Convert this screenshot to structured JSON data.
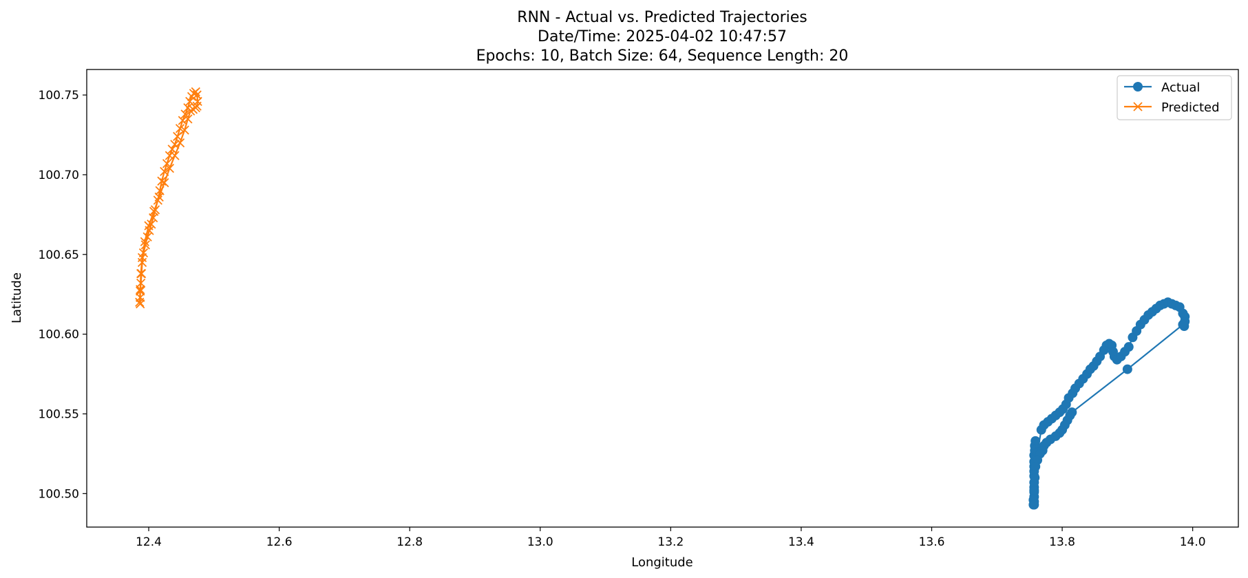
{
  "chart_data": {
    "type": "line",
    "title": [
      "RNN - Actual vs. Predicted Trajectories",
      "Date/Time: 2025-04-02 10:47:57",
      "Epochs: 10, Batch Size: 64, Sequence Length: 20"
    ],
    "xlabel": "Longitude",
    "ylabel": "Latitude",
    "xlim": [
      12.305,
      14.07
    ],
    "ylim": [
      100.479,
      100.766
    ],
    "xticks": [
      12.4,
      12.6,
      12.8,
      13.0,
      13.2,
      13.4,
      13.6,
      13.8,
      14.0
    ],
    "xtick_labels": [
      "12.4",
      "12.6",
      "12.8",
      "13.0",
      "13.2",
      "13.4",
      "13.6",
      "13.8",
      "14.0"
    ],
    "yticks": [
      100.5,
      100.55,
      100.6,
      100.65,
      100.7,
      100.75
    ],
    "ytick_labels": [
      "100.50",
      "100.55",
      "100.60",
      "100.65",
      "100.70",
      "100.75"
    ],
    "grid": false,
    "legend_position": "top-right",
    "series": [
      {
        "name": "Actual",
        "color": "#1f77b4",
        "marker": "circle",
        "x": [
          13.757,
          13.757,
          13.757,
          13.757,
          13.757,
          13.757,
          13.757,
          13.757,
          13.757,
          13.757,
          13.757,
          13.758,
          13.758,
          13.759,
          13.762,
          13.768,
          13.772,
          13.778,
          13.784,
          13.79,
          13.796,
          13.801,
          13.806,
          13.81,
          13.816,
          13.82,
          13.826,
          13.832,
          13.838,
          13.843,
          13.848,
          13.853,
          13.858,
          13.864,
          13.868,
          13.872,
          13.876,
          13.878,
          13.88,
          13.884,
          13.89,
          13.896,
          13.902,
          13.908,
          13.914,
          13.92,
          13.926,
          13.932,
          13.938,
          13.944,
          13.95,
          13.956,
          13.962,
          13.968,
          13.974,
          13.98,
          13.985,
          13.988,
          13.988,
          13.987,
          13.985,
          13.9,
          13.815,
          13.812,
          13.808,
          13.804,
          13.8,
          13.796,
          13.79,
          13.782,
          13.776,
          13.772,
          13.77,
          13.766,
          13.762,
          13.759,
          13.758,
          13.757,
          13.756,
          13.756
        ],
        "y": [
          100.493,
          100.495,
          100.498,
          100.501,
          100.504,
          100.507,
          100.511,
          100.514,
          100.517,
          100.52,
          100.524,
          100.527,
          100.53,
          100.533,
          100.526,
          100.54,
          100.543,
          100.545,
          100.547,
          100.549,
          100.551,
          100.553,
          100.556,
          100.56,
          100.563,
          100.566,
          100.569,
          100.572,
          100.575,
          100.578,
          100.58,
          100.583,
          100.586,
          100.59,
          100.593,
          100.594,
          100.593,
          100.589,
          100.586,
          100.584,
          100.586,
          100.589,
          100.592,
          100.598,
          100.602,
          100.606,
          100.609,
          100.612,
          100.614,
          100.616,
          100.618,
          100.619,
          100.62,
          100.619,
          100.618,
          100.617,
          100.613,
          100.611,
          100.608,
          100.605,
          100.606,
          100.578,
          100.551,
          100.549,
          100.546,
          100.543,
          100.54,
          100.538,
          100.536,
          100.534,
          100.532,
          100.53,
          100.527,
          100.525,
          100.521,
          100.517,
          100.51,
          100.502,
          100.496,
          100.493
        ]
      },
      {
        "name": "Predicted",
        "color": "#ff7f0e",
        "marker": "x",
        "x": [
          12.387,
          12.387,
          12.387,
          12.388,
          12.389,
          12.39,
          12.392,
          12.395,
          12.398,
          12.401,
          12.404,
          12.407,
          12.41,
          12.414,
          12.417,
          12.42,
          12.424,
          12.428,
          12.432,
          12.436,
          12.44,
          12.444,
          12.448,
          12.452,
          12.456,
          12.46,
          12.463,
          12.466,
          12.469,
          12.472,
          12.474,
          12.475,
          12.474,
          12.472,
          12.468,
          12.464,
          12.46,
          12.455,
          12.448,
          12.44,
          12.432,
          12.424,
          12.416,
          12.408,
          12.4,
          12.394,
          12.39,
          12.388,
          12.387,
          12.386
        ],
        "y": [
          100.619,
          100.623,
          100.627,
          100.632,
          100.638,
          100.645,
          100.651,
          100.656,
          100.661,
          100.665,
          100.669,
          100.673,
          100.678,
          100.684,
          100.69,
          100.696,
          100.702,
          100.707,
          100.712,
          100.716,
          100.719,
          100.724,
          100.729,
          100.734,
          100.738,
          100.742,
          100.746,
          100.749,
          100.751,
          100.752,
          100.75,
          100.746,
          100.743,
          100.742,
          100.741,
          100.74,
          100.735,
          100.728,
          100.72,
          100.712,
          100.704,
          100.695,
          100.686,
          100.677,
          100.668,
          100.658,
          100.648,
          100.638,
          100.628,
          100.62
        ]
      }
    ]
  }
}
